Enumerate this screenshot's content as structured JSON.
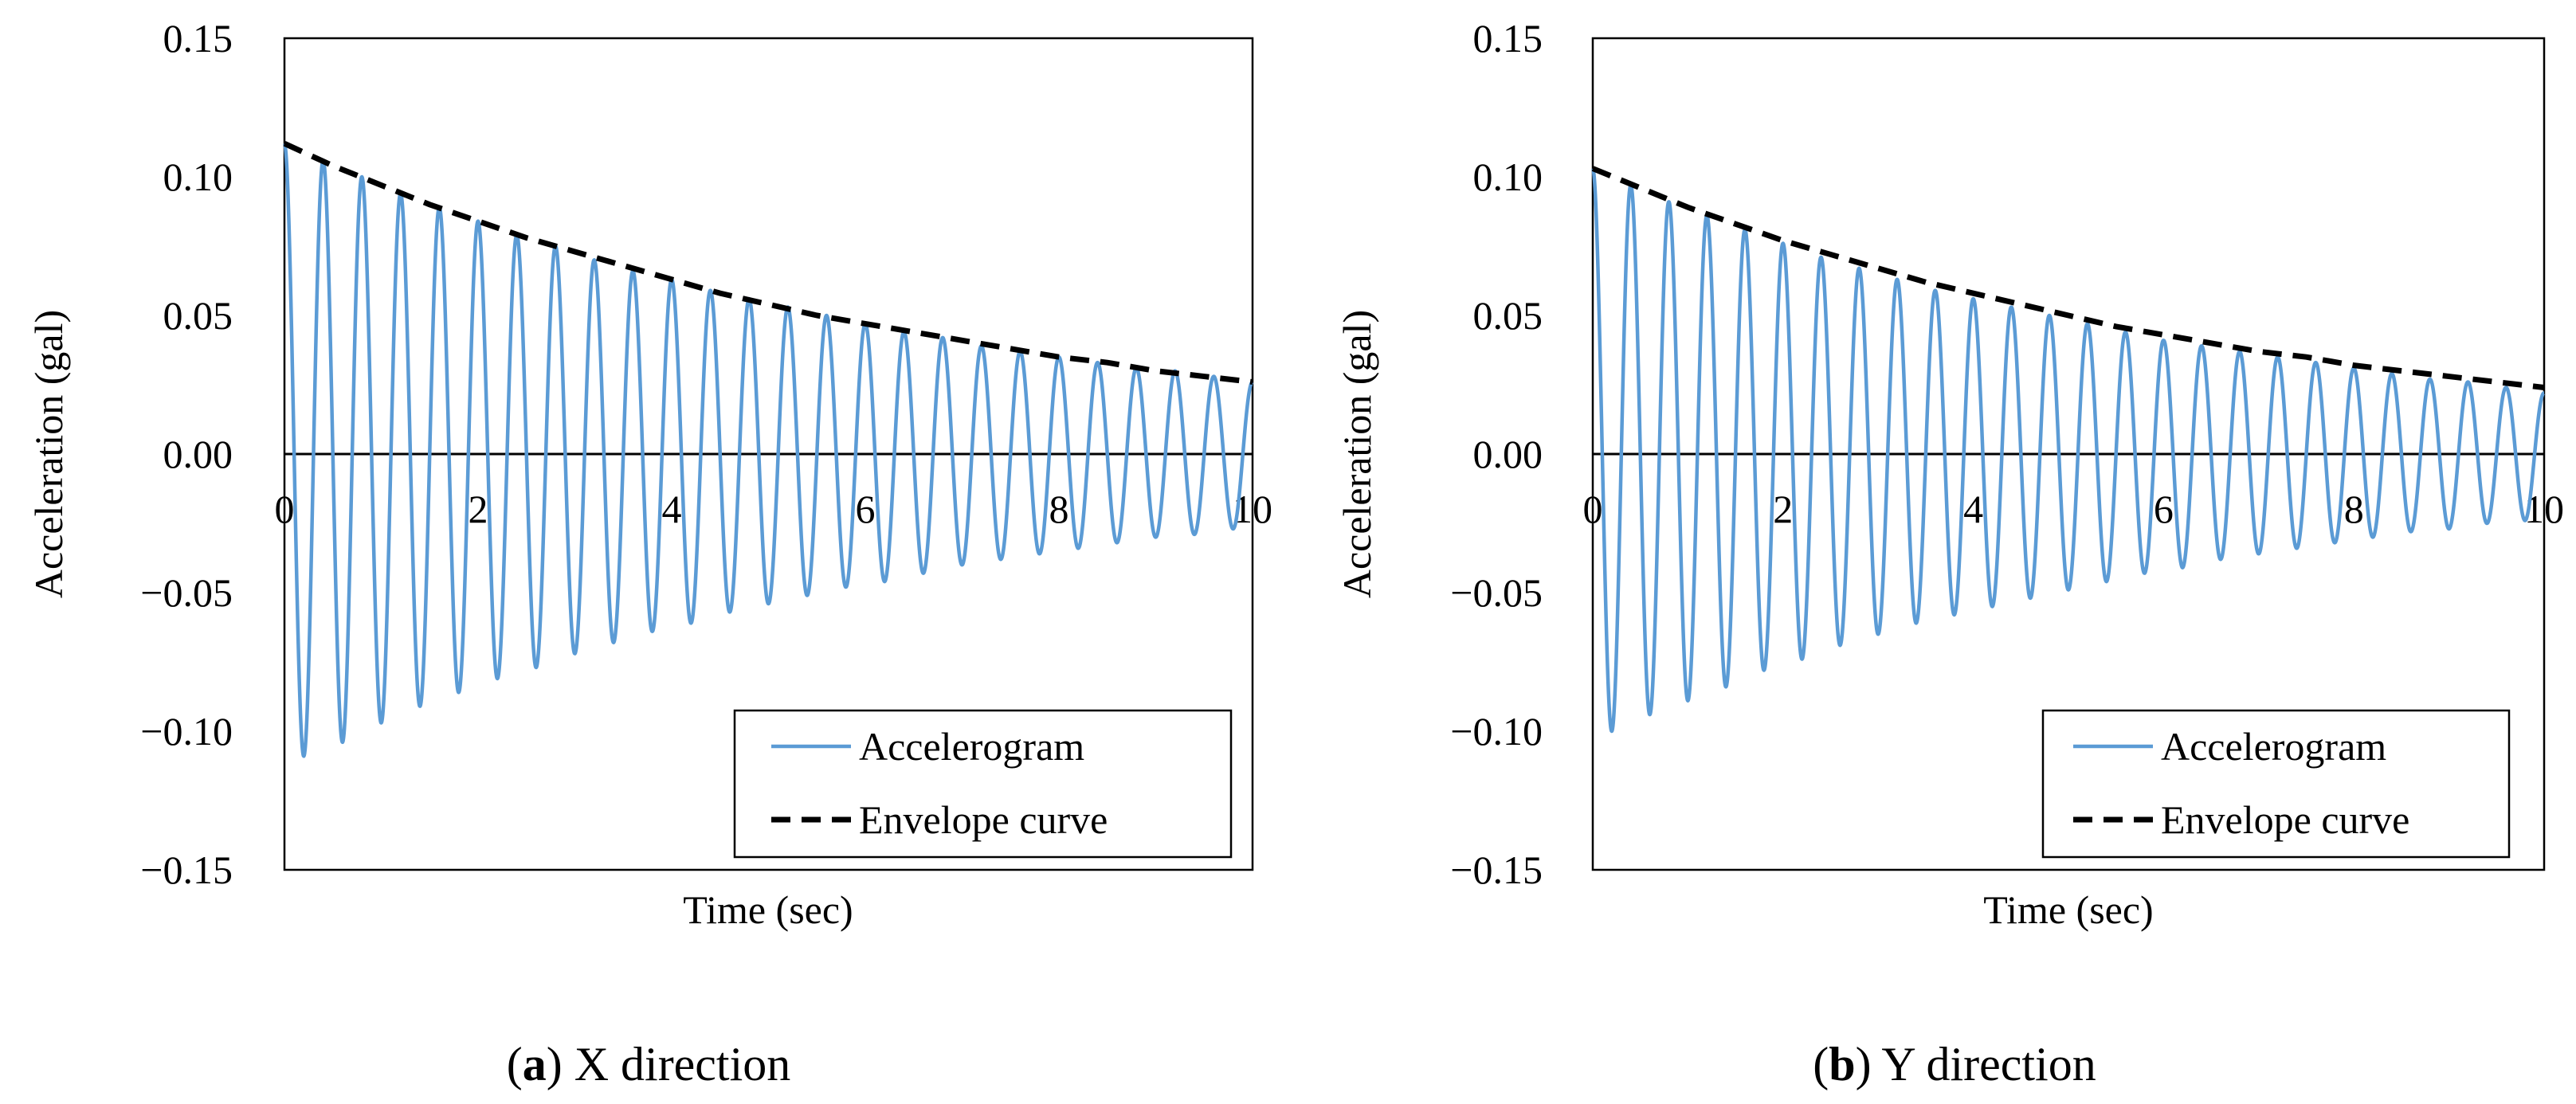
{
  "chart_data": [
    {
      "type": "line",
      "panel_letter": "a",
      "caption": "X direction",
      "xlabel": "Time (sec)",
      "ylabel": "Acceleration (gal)",
      "xlim": [
        0,
        10
      ],
      "ylim": [
        -0.15,
        0.15
      ],
      "x_ticks": [
        "0",
        "2",
        "4",
        "6",
        "8",
        "10"
      ],
      "y_ticks": [
        "0.15",
        "0.10",
        "0.05",
        "0.00",
        "−0.05",
        "−0.10",
        "−0.15"
      ],
      "legend_position": "bottom-right",
      "series": [
        {
          "name": "Accelerogram",
          "style": "solid",
          "color": "#5B9BD5",
          "frequency_hz": 2.5,
          "peaks": {
            "t": [
              0.0,
              0.4,
              0.8,
              1.2,
              1.6,
              2.0,
              2.4,
              2.8,
              3.2,
              3.6,
              4.0,
              4.4,
              4.8,
              5.2,
              5.6,
              6.0,
              6.4,
              6.8,
              7.2,
              7.6,
              8.0,
              8.4,
              8.8,
              9.2,
              9.6,
              10.0
            ],
            "a": [
              0.112,
              0.106,
              0.1,
              0.094,
              0.089,
              0.084,
              0.079,
              0.075,
              0.07,
              0.066,
              0.063,
              0.059,
              0.056,
              0.053,
              0.05,
              0.047,
              0.044,
              0.042,
              0.039,
              0.037,
              0.035,
              0.033,
              0.031,
              0.03,
              0.028,
              0.026
            ]
          },
          "troughs": {
            "t": [
              0.2,
              0.6,
              1.0,
              1.4,
              1.8,
              2.2,
              2.6,
              3.0,
              3.4,
              3.8,
              4.2,
              4.6,
              5.0,
              5.4,
              5.8,
              6.2,
              6.6,
              7.0,
              7.4,
              7.8,
              8.2,
              8.6,
              9.0,
              9.4,
              9.8
            ],
            "a": [
              -0.109,
              -0.104,
              -0.097,
              -0.091,
              -0.086,
              -0.081,
              -0.077,
              -0.072,
              -0.068,
              -0.064,
              -0.061,
              -0.057,
              -0.054,
              -0.051,
              -0.048,
              -0.046,
              -0.043,
              -0.04,
              -0.038,
              -0.036,
              -0.034,
              -0.032,
              -0.03,
              -0.029,
              -0.027
            ]
          }
        },
        {
          "name": "Envelope curve",
          "style": "dashed",
          "color": "#000000",
          "x": [
            0,
            0.5,
            1,
            1.5,
            2,
            2.5,
            3,
            3.5,
            4,
            4.5,
            5,
            5.5,
            6,
            6.5,
            7,
            7.5,
            8,
            8.5,
            9,
            9.5,
            10
          ],
          "y": [
            0.112,
            0.104,
            0.097,
            0.09,
            0.084,
            0.078,
            0.073,
            0.068,
            0.063,
            0.058,
            0.054,
            0.05,
            0.047,
            0.044,
            0.041,
            0.038,
            0.035,
            0.033,
            0.03,
            0.028,
            0.026
          ]
        }
      ]
    },
    {
      "type": "line",
      "panel_letter": "b",
      "caption": "Y direction",
      "xlabel": "Time (sec)",
      "ylabel": "Acceleration (gal)",
      "xlim": [
        0,
        10
      ],
      "ylim": [
        -0.15,
        0.15
      ],
      "x_ticks": [
        "0",
        "2",
        "4",
        "6",
        "8",
        "10"
      ],
      "y_ticks": [
        "0.15",
        "0.10",
        "0.05",
        "0.00",
        "−0.05",
        "−0.10",
        "−0.15"
      ],
      "legend_position": "bottom-right",
      "series": [
        {
          "name": "Accelerogram",
          "style": "solid",
          "color": "#5B9BD5",
          "frequency_hz": 2.5,
          "peaks": {
            "t": [
              0.0,
              0.4,
              0.8,
              1.2,
              1.6,
              2.0,
              2.4,
              2.8,
              3.2,
              3.6,
              4.0,
              4.4,
              4.8,
              5.2,
              5.6,
              6.0,
              6.4,
              6.8,
              7.2,
              7.6,
              8.0,
              8.4,
              8.8,
              9.2,
              9.6,
              10.0
            ],
            "a": [
              0.103,
              0.097,
              0.091,
              0.086,
              0.081,
              0.076,
              0.071,
              0.067,
              0.063,
              0.059,
              0.056,
              0.053,
              0.05,
              0.047,
              0.044,
              0.041,
              0.039,
              0.037,
              0.035,
              0.033,
              0.031,
              0.029,
              0.027,
              0.026,
              0.024,
              0.022
            ]
          },
          "troughs": {
            "t": [
              0.2,
              0.6,
              1.0,
              1.4,
              1.8,
              2.2,
              2.6,
              3.0,
              3.4,
              3.8,
              4.2,
              4.6,
              5.0,
              5.4,
              5.8,
              6.2,
              6.6,
              7.0,
              7.4,
              7.8,
              8.2,
              8.6,
              9.0,
              9.4,
              9.8
            ],
            "a": [
              -0.1,
              -0.094,
              -0.089,
              -0.084,
              -0.078,
              -0.074,
              -0.069,
              -0.065,
              -0.061,
              -0.058,
              -0.055,
              -0.052,
              -0.049,
              -0.046,
              -0.043,
              -0.041,
              -0.038,
              -0.036,
              -0.034,
              -0.032,
              -0.03,
              -0.028,
              -0.027,
              -0.025,
              -0.024
            ]
          }
        },
        {
          "name": "Envelope curve",
          "style": "dashed",
          "color": "#000000",
          "x": [
            0,
            0.5,
            1,
            1.5,
            2,
            2.5,
            3,
            3.5,
            4,
            4.5,
            5,
            5.5,
            6,
            6.5,
            7,
            7.5,
            8,
            8.5,
            9,
            9.5,
            10
          ],
          "y": [
            0.103,
            0.096,
            0.089,
            0.083,
            0.077,
            0.072,
            0.067,
            0.062,
            0.058,
            0.054,
            0.05,
            0.046,
            0.043,
            0.04,
            0.037,
            0.035,
            0.032,
            0.03,
            0.028,
            0.026,
            0.024
          ]
        }
      ]
    }
  ]
}
